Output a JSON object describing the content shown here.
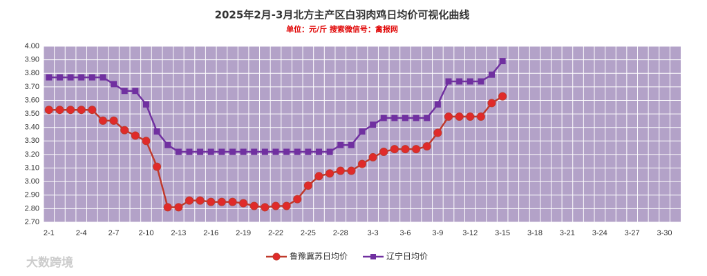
{
  "chart_data": {
    "type": "line",
    "title": "2025年2月-3月北方主产区白羽肉鸡日均价可视化曲线",
    "subtitle": "单位：元/斤    搜索微信号：禽报网",
    "watermark": "大数跨境",
    "categories": [
      "2-1",
      null,
      null,
      "2-4",
      null,
      null,
      "2-7",
      null,
      null,
      "2-10",
      null,
      null,
      "2-13",
      null,
      null,
      "2-16",
      null,
      null,
      "2-19",
      null,
      null,
      "2-22",
      null,
      null,
      "2-25",
      null,
      null,
      "2-28",
      null,
      null,
      "3-3",
      null,
      null,
      "3-6",
      null,
      null,
      "3-9",
      null,
      null,
      "3-12",
      null,
      null,
      "3-15",
      null,
      null,
      "3-18",
      null,
      null,
      "3-21",
      null,
      null,
      "3-24",
      null,
      null,
      "3-27",
      null,
      null,
      "3-30",
      null
    ],
    "series": [
      {
        "name": "鲁豫冀苏日均价",
        "color": "#c0392b",
        "marker": "circle",
        "values": [
          3.53,
          3.53,
          3.53,
          3.53,
          3.53,
          3.45,
          3.45,
          3.38,
          3.34,
          3.3,
          3.11,
          2.81,
          2.81,
          2.86,
          2.86,
          2.85,
          2.85,
          2.85,
          2.84,
          2.82,
          2.81,
          2.82,
          2.82,
          2.87,
          2.97,
          3.04,
          3.06,
          3.08,
          3.08,
          3.13,
          3.18,
          3.22,
          3.24,
          3.24,
          3.24,
          3.26,
          3.36,
          3.48,
          3.48,
          3.48,
          3.48,
          3.58,
          3.63,
          null,
          null,
          null,
          null,
          null,
          null,
          null,
          null,
          null,
          null,
          null,
          null,
          null,
          null,
          null,
          null
        ]
      },
      {
        "name": "辽宁日均价",
        "color": "#7030a0",
        "marker": "square",
        "values": [
          3.77,
          3.77,
          3.77,
          3.77,
          3.77,
          3.77,
          3.72,
          3.67,
          3.67,
          3.57,
          3.37,
          3.27,
          3.22,
          3.22,
          3.22,
          3.22,
          3.22,
          3.22,
          3.22,
          3.22,
          3.22,
          3.22,
          3.22,
          3.22,
          3.22,
          3.22,
          3.22,
          3.27,
          3.27,
          3.37,
          3.42,
          3.47,
          3.47,
          3.47,
          3.47,
          3.47,
          3.57,
          3.74,
          3.74,
          3.74,
          3.74,
          3.79,
          3.89,
          null,
          null,
          null,
          null,
          null,
          null,
          null,
          null,
          null,
          null,
          null,
          null,
          null,
          null,
          null,
          null
        ]
      }
    ],
    "ylim": [
      2.7,
      4.0
    ],
    "yticks": [
      {
        "value": 2.7,
        "label": "2.70"
      },
      {
        "value": 2.8,
        "label": "2.80"
      },
      {
        "value": 2.9,
        "label": "2.90"
      },
      {
        "value": 3.0,
        "label": "3.00"
      },
      {
        "value": 3.1,
        "label": "3.10"
      },
      {
        "value": 3.2,
        "label": "3.20"
      },
      {
        "value": 3.3,
        "label": "3.30"
      },
      {
        "value": 3.4,
        "label": "3.40"
      },
      {
        "value": 3.5,
        "label": "3.50"
      },
      {
        "value": 3.6,
        "label": "3.60"
      },
      {
        "value": 3.7,
        "label": "3.70"
      },
      {
        "value": 3.8,
        "label": "3.80"
      },
      {
        "value": 3.9,
        "label": "3.90"
      },
      {
        "value": 4.0,
        "label": "4.00"
      }
    ],
    "grid": true,
    "plot_background": "#b3a2c8",
    "legend": "bottom"
  }
}
